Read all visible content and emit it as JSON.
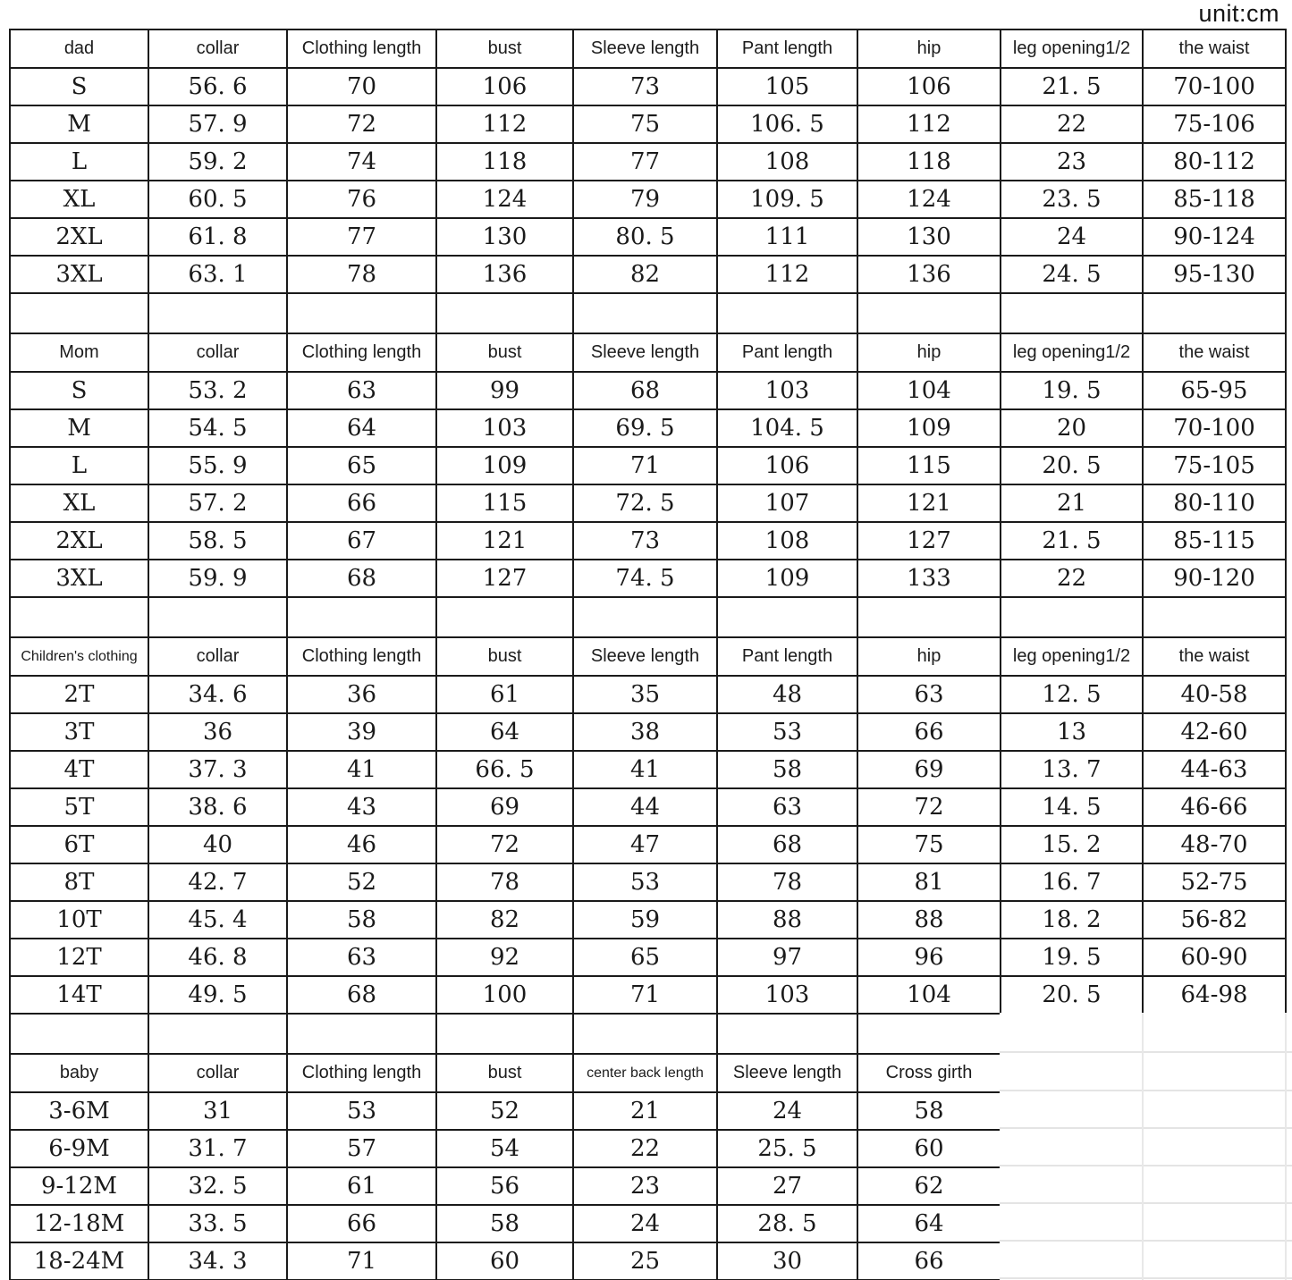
{
  "unit_label": "unit:cm",
  "chart_data": [
    {
      "type": "table",
      "title": "dad",
      "columns": [
        "dad",
        "collar",
        "Clothing length",
        "bust",
        "Sleeve length",
        "Pant length",
        "hip",
        "leg opening1/2",
        "the waist"
      ],
      "rows": [
        [
          "S",
          "56. 6",
          "70",
          "106",
          "73",
          "105",
          "106",
          "21. 5",
          "70-100"
        ],
        [
          "M",
          "57. 9",
          "72",
          "112",
          "75",
          "106. 5",
          "112",
          "22",
          "75-106"
        ],
        [
          "L",
          "59. 2",
          "74",
          "118",
          "77",
          "108",
          "118",
          "23",
          "80-112"
        ],
        [
          "XL",
          "60. 5",
          "76",
          "124",
          "79",
          "109. 5",
          "124",
          "23. 5",
          "85-118"
        ],
        [
          "2XL",
          "61. 8",
          "77",
          "130",
          "80. 5",
          "111",
          "130",
          "24",
          "90-124"
        ],
        [
          "3XL",
          "63. 1",
          "78",
          "136",
          "82",
          "112",
          "136",
          "24. 5",
          "95-130"
        ]
      ]
    },
    {
      "type": "table",
      "title": "Mom",
      "columns": [
        "Mom",
        "collar",
        "Clothing length",
        "bust",
        "Sleeve length",
        "Pant length",
        "hip",
        "leg opening1/2",
        "the waist"
      ],
      "rows": [
        [
          "S",
          "53. 2",
          "63",
          "99",
          "68",
          "103",
          "104",
          "19. 5",
          "65-95"
        ],
        [
          "M",
          "54. 5",
          "64",
          "103",
          "69. 5",
          "104. 5",
          "109",
          "20",
          "70-100"
        ],
        [
          "L",
          "55. 9",
          "65",
          "109",
          "71",
          "106",
          "115",
          "20. 5",
          "75-105"
        ],
        [
          "XL",
          "57. 2",
          "66",
          "115",
          "72. 5",
          "107",
          "121",
          "21",
          "80-110"
        ],
        [
          "2XL",
          "58. 5",
          "67",
          "121",
          "73",
          "108",
          "127",
          "21. 5",
          "85-115"
        ],
        [
          "3XL",
          "59. 9",
          "68",
          "127",
          "74. 5",
          "109",
          "133",
          "22",
          "90-120"
        ]
      ]
    },
    {
      "type": "table",
      "title": "Children's clothing",
      "columns": [
        "Children's clothing",
        "collar",
        "Clothing length",
        "bust",
        "Sleeve length",
        "Pant length",
        "hip",
        "leg opening1/2",
        "the waist"
      ],
      "rows": [
        [
          "2T",
          "34. 6",
          "36",
          "61",
          "35",
          "48",
          "63",
          "12. 5",
          "40-58"
        ],
        [
          "3T",
          "36",
          "39",
          "64",
          "38",
          "53",
          "66",
          "13",
          "42-60"
        ],
        [
          "4T",
          "37. 3",
          "41",
          "66. 5",
          "41",
          "58",
          "69",
          "13. 7",
          "44-63"
        ],
        [
          "5T",
          "38. 6",
          "43",
          "69",
          "44",
          "63",
          "72",
          "14. 5",
          "46-66"
        ],
        [
          "6T",
          "40",
          "46",
          "72",
          "47",
          "68",
          "75",
          "15. 2",
          "48-70"
        ],
        [
          "8T",
          "42. 7",
          "52",
          "78",
          "53",
          "78",
          "81",
          "16. 7",
          "52-75"
        ],
        [
          "10T",
          "45. 4",
          "58",
          "82",
          "59",
          "88",
          "88",
          "18. 2",
          "56-82"
        ],
        [
          "12T",
          "46. 8",
          "63",
          "92",
          "65",
          "97",
          "96",
          "19. 5",
          "60-90"
        ],
        [
          "14T",
          "49. 5",
          "68",
          "100",
          "71",
          "103",
          "104",
          "20. 5",
          "64-98"
        ]
      ]
    },
    {
      "type": "table",
      "title": "baby",
      "columns": [
        "baby",
        "collar",
        "Clothing length",
        "bust",
        "center back length",
        "Sleeve length",
        "Cross girth"
      ],
      "rows": [
        [
          "3-6M",
          "31",
          "53",
          "52",
          "21",
          "24",
          "58"
        ],
        [
          "6-9M",
          "31. 7",
          "57",
          "54",
          "22",
          "25. 5",
          "60"
        ],
        [
          "9-12M",
          "32. 5",
          "61",
          "56",
          "23",
          "27",
          "62"
        ],
        [
          "12-18M",
          "33. 5",
          "66",
          "58",
          "24",
          "28. 5",
          "64"
        ],
        [
          "18-24M",
          "34. 3",
          "71",
          "60",
          "25",
          "30",
          "66"
        ]
      ]
    }
  ]
}
